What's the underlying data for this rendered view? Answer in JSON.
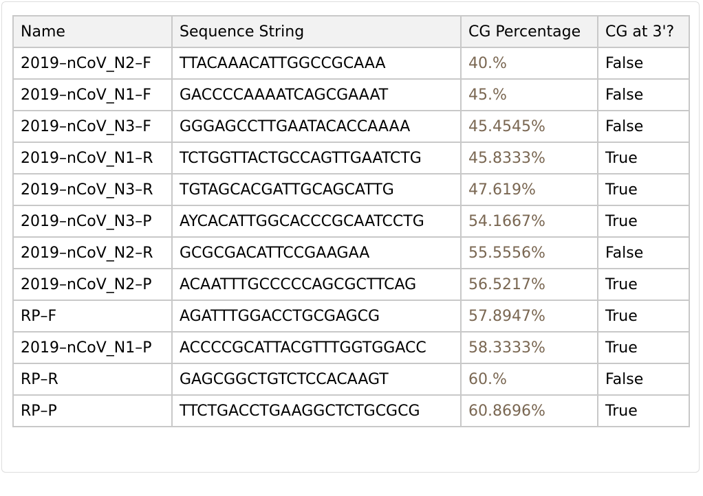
{
  "table": {
    "header": [
      "Name",
      "Sequence String",
      "CG Percentage",
      "CG at 3'?"
    ],
    "rows": [
      [
        "2019–nCoV_N2–F",
        "TTACAAACATTGGCCGCAAA",
        "40.%",
        "False"
      ],
      [
        "2019–nCoV_N1–F",
        "GACCCCAAAATCAGCGAAAT",
        "45.%",
        "False"
      ],
      [
        "2019–nCoV_N3–F",
        "GGGAGCCTTGAATACACCAAAA",
        "45.4545%",
        "False"
      ],
      [
        "2019–nCoV_N1–R",
        "TCTGGTTACTGCCAGTTGAATCTG",
        "45.8333%",
        "True"
      ],
      [
        "2019–nCoV_N3–R",
        "TGTAGCACGATTGCAGCATTG",
        "47.619%",
        "True"
      ],
      [
        "2019–nCoV_N3–P",
        "AYCACATTGGCACCCGCAATCCTG",
        "54.1667%",
        "True"
      ],
      [
        "2019–nCoV_N2–R",
        "GCGCGACATTCCGAAGAA",
        "55.5556%",
        "False"
      ],
      [
        "2019–nCoV_N2–P",
        "ACAATTTGCCCCCAGCGCTTCAG",
        "56.5217%",
        "True"
      ],
      [
        "RP–F",
        "AGATTTGGACCTGCGAGCG",
        "57.8947%",
        "True"
      ],
      [
        "2019–nCoV_N1–P",
        "ACCCCGCATTACGTTTGGTGGACC",
        "58.3333%",
        "True"
      ],
      [
        "RP–R",
        "GAGCGGCTGTCTCCACAAGT",
        "60.%",
        "False"
      ],
      [
        "RP–P",
        "TTCTGACCTGAAGGCTCTGCGCG",
        "60.8696%",
        "True"
      ]
    ]
  }
}
